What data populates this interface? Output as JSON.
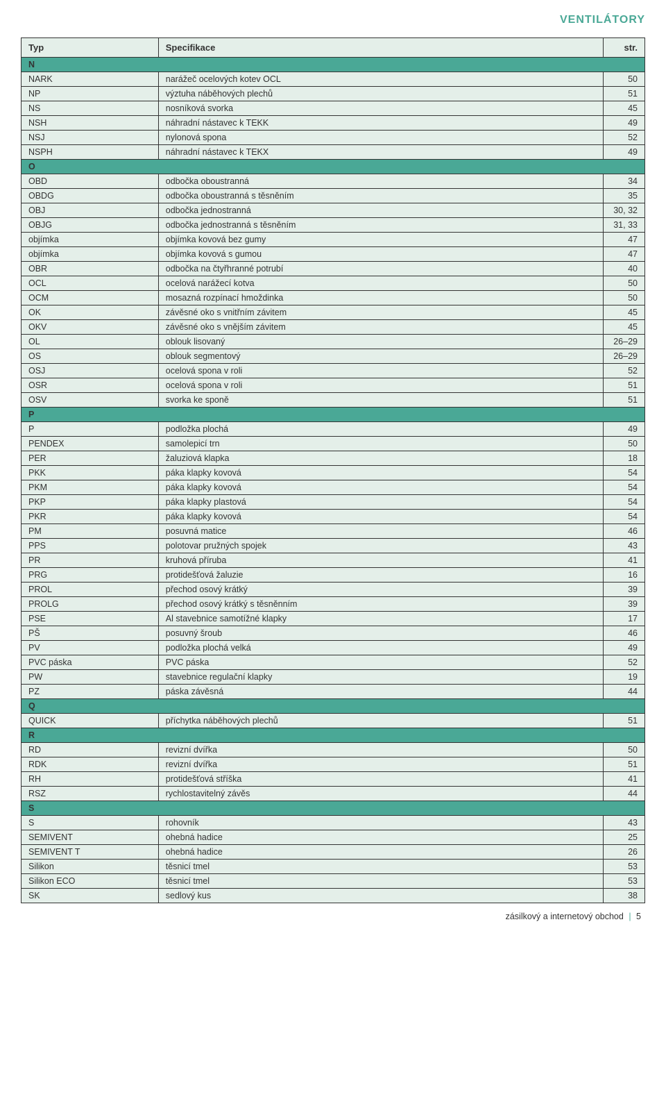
{
  "page_title": "VENTILÁTORY",
  "columns": {
    "typ": "Typ",
    "spec": "Specifikace",
    "page": "str."
  },
  "sections": [
    {
      "letter": "N",
      "rows": [
        {
          "typ": "NARK",
          "spec": "narážeč ocelových kotev OCL",
          "page": "50"
        },
        {
          "typ": "NP",
          "spec": "výztuha náběhových plechů",
          "page": "51"
        },
        {
          "typ": "NS",
          "spec": "nosníková svorka",
          "page": "45"
        },
        {
          "typ": "NSH",
          "spec": "náhradní nástavec k TEKK",
          "page": "49"
        },
        {
          "typ": "NSJ",
          "spec": "nylonová spona",
          "page": "52"
        },
        {
          "typ": "NSPH",
          "spec": "náhradní nástavec k TEKX",
          "page": "49"
        }
      ]
    },
    {
      "letter": "O",
      "rows": [
        {
          "typ": "OBD",
          "spec": "odbočka oboustranná",
          "page": "34"
        },
        {
          "typ": "OBDG",
          "spec": "odbočka oboustranná s těsněním",
          "page": "35"
        },
        {
          "typ": "OBJ",
          "spec": "odbočka jednostranná",
          "page": "30, 32"
        },
        {
          "typ": "OBJG",
          "spec": "odbočka jednostranná s těsněním",
          "page": "31, 33"
        },
        {
          "typ": "objímka",
          "spec": "objímka kovová bez gumy",
          "page": "47"
        },
        {
          "typ": "objímka",
          "spec": "objímka kovová s gumou",
          "page": "47"
        },
        {
          "typ": "OBR",
          "spec": "odbočka na čtyřhranné potrubí",
          "page": "40"
        },
        {
          "typ": "OCL",
          "spec": "ocelová narážecí kotva",
          "page": "50"
        },
        {
          "typ": "OCM",
          "spec": "mosazná rozpínací hmoždinka",
          "page": "50"
        },
        {
          "typ": "OK",
          "spec": "závěsné oko s vnitřním závitem",
          "page": "45"
        },
        {
          "typ": "OKV",
          "spec": "závěsné oko s vnějším závitem",
          "page": "45"
        },
        {
          "typ": "OL",
          "spec": "oblouk lisovaný",
          "page": "26–29"
        },
        {
          "typ": "OS",
          "spec": "oblouk segmentový",
          "page": "26–29"
        },
        {
          "typ": "OSJ",
          "spec": "ocelová spona v roli",
          "page": "52"
        },
        {
          "typ": "OSR",
          "spec": "ocelová spona v roli",
          "page": "51"
        },
        {
          "typ": "OSV",
          "spec": "svorka ke sponě",
          "page": "51"
        }
      ]
    },
    {
      "letter": "P",
      "rows": [
        {
          "typ": "P",
          "spec": "podložka plochá",
          "page": "49"
        },
        {
          "typ": "PENDEX",
          "spec": "samolepicí trn",
          "page": "50"
        },
        {
          "typ": "PER",
          "spec": "žaluziová klapka",
          "page": "18"
        },
        {
          "typ": "PKK",
          "spec": "páka klapky kovová",
          "page": "54"
        },
        {
          "typ": "PKM",
          "spec": "páka klapky kovová",
          "page": "54"
        },
        {
          "typ": "PKP",
          "spec": "páka klapky plastová",
          "page": "54"
        },
        {
          "typ": "PKR",
          "spec": "páka klapky kovová",
          "page": "54"
        },
        {
          "typ": "PM",
          "spec": "posuvná matice",
          "page": "46"
        },
        {
          "typ": "PPS",
          "spec": "polotovar pružných spojek",
          "page": "43"
        },
        {
          "typ": "PR",
          "spec": "kruhová příruba",
          "page": "41"
        },
        {
          "typ": "PRG",
          "spec": "protidešťová žaluzie",
          "page": "16"
        },
        {
          "typ": "PROL",
          "spec": "přechod osový krátký",
          "page": "39"
        },
        {
          "typ": "PROLG",
          "spec": "přechod osový krátký s těsněnním",
          "page": "39"
        },
        {
          "typ": "PSE",
          "spec": "Al stavebnice samotížné klapky",
          "page": "17"
        },
        {
          "typ": "PŠ",
          "spec": "posuvný šroub",
          "page": "46"
        },
        {
          "typ": "PV",
          "spec": "podložka plochá velká",
          "page": "49"
        },
        {
          "typ": "PVC páska",
          "spec": "PVC páska",
          "page": "52"
        },
        {
          "typ": "PW",
          "spec": "stavebnice regulační klapky",
          "page": "19"
        },
        {
          "typ": "PZ",
          "spec": "páska závěsná",
          "page": "44"
        }
      ]
    },
    {
      "letter": "Q",
      "rows": [
        {
          "typ": "QUICK",
          "spec": "příchytka náběhových plechů",
          "page": "51"
        }
      ]
    },
    {
      "letter": "R",
      "rows": [
        {
          "typ": "RD",
          "spec": "revizní dvířka",
          "page": "50"
        },
        {
          "typ": "RDK",
          "spec": "revizní dvířka",
          "page": "51"
        },
        {
          "typ": "RH",
          "spec": "protidešťová stříška",
          "page": "41"
        },
        {
          "typ": "RSZ",
          "spec": "rychlostavitelný závěs",
          "page": "44"
        }
      ]
    },
    {
      "letter": "S",
      "rows": [
        {
          "typ": "S",
          "spec": "rohovník",
          "page": "43"
        },
        {
          "typ": "SEMIVENT",
          "spec": "ohebná hadice",
          "page": "25"
        },
        {
          "typ": "SEMIVENT T",
          "spec": "ohebná hadice",
          "page": "26"
        },
        {
          "typ": "Silikon",
          "spec": "těsnicí tmel",
          "page": "53"
        },
        {
          "typ": "Silikon ECO",
          "spec": "těsnicí tmel",
          "page": "53"
        },
        {
          "typ": "SK",
          "spec": "sedlový kus",
          "page": "38"
        }
      ]
    }
  ],
  "footer": {
    "text": "zásilkový a internetový obchod",
    "page_num": "5"
  },
  "colors": {
    "accent": "#4aa896",
    "row_bg": "#e4efe9",
    "border": "#333333",
    "body_bg": "#ffffff"
  },
  "typography": {
    "header_fontsize": 16,
    "th_fontsize": 13,
    "td_fontsize": 12.5,
    "footer_fontsize": 12.5
  }
}
